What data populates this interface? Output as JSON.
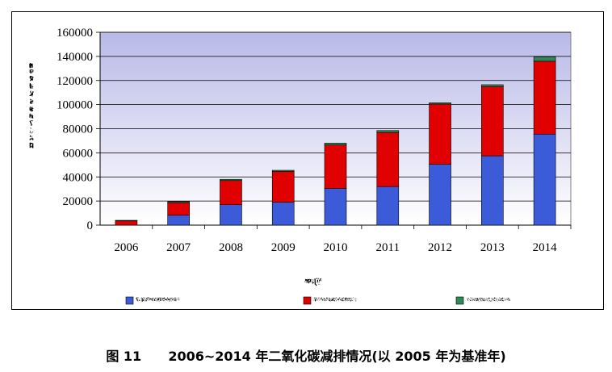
{
  "chart_data": {
    "type": "bar",
    "stacked": true,
    "categories": [
      "2006",
      "2007",
      "2008",
      "2009",
      "2010",
      "2011",
      "2012",
      "2013",
      "2014"
    ],
    "series": [
      {
        "name": "发展非化石能源",
        "color": "#3b5bd8",
        "values": [
          0,
          8200,
          17000,
          19000,
          30500,
          32000,
          50500,
          57500,
          75500
        ]
      },
      {
        "name": "降低供电煤耗",
        "color": "#e00000",
        "values": [
          3500,
          10500,
          20000,
          25500,
          36000,
          45000,
          50000,
          57500,
          60500
        ]
      },
      {
        "name": "降低线损率",
        "color": "#2e8b57",
        "values": [
          500,
          800,
          1000,
          1000,
          1500,
          1500,
          1000,
          1500,
          3500
        ]
      }
    ],
    "ylabel": "二氧化碳减排量（万吨）",
    "xlabel": "年份（年）",
    "ylim": [
      0,
      160000
    ],
    "yticks": [
      "0",
      "20000",
      "40000",
      "60000",
      "80000",
      "100000",
      "120000",
      "140000",
      "160000"
    ],
    "grid": true,
    "legend_position": "bottom"
  },
  "caption": {
    "figure_label": "图 11",
    "title": "2006~2014 年二氧化碳减排情况(以 2005 年为基准年)"
  }
}
